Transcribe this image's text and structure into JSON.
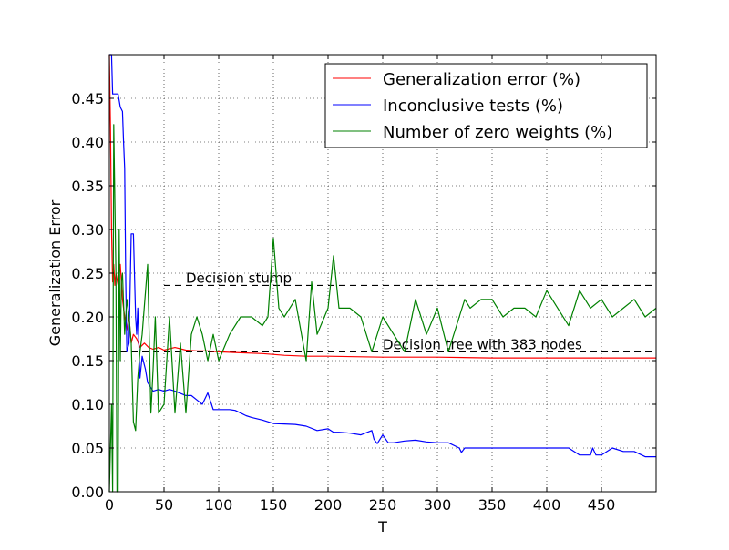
{
  "chart_data": {
    "type": "line",
    "xlabel": "T",
    "ylabel": "Generalization Error",
    "xlim": [
      0,
      500
    ],
    "ylim": [
      0,
      0.5
    ],
    "xticks": [
      0,
      50,
      100,
      150,
      200,
      250,
      300,
      350,
      400,
      450
    ],
    "yticks": [
      0.0,
      0.05,
      0.1,
      0.15,
      0.2,
      0.25,
      0.3,
      0.35,
      0.4,
      0.45
    ],
    "xtick_labels": [
      "0",
      "50",
      "100",
      "150",
      "200",
      "250",
      "300",
      "350",
      "400",
      "450"
    ],
    "ytick_labels": [
      "0.00",
      "0.05",
      "0.10",
      "0.15",
      "0.20",
      "0.25",
      "0.30",
      "0.35",
      "0.40",
      "0.45"
    ],
    "grid": true,
    "legend_position": "top-right",
    "colors": {
      "generalization": "#ff0000",
      "inconclusive": "#0000ff",
      "zero_weights": "#008000",
      "reference": "#000000"
    },
    "reference_lines": [
      {
        "label": "Decision stump",
        "y": 0.236,
        "x_start": 50,
        "x_end": 500,
        "label_x": 70
      },
      {
        "label": "Decision tree with 383 nodes",
        "y": 0.16,
        "x_start": 0,
        "x_end": 500,
        "label_x": 250
      }
    ],
    "series": [
      {
        "name": "Generalization error (%)",
        "color": "#ff0000",
        "x": [
          0,
          1,
          2,
          3,
          4,
          5,
          6,
          8,
          10,
          12,
          14,
          16,
          18,
          20,
          22,
          25,
          28,
          32,
          36,
          40,
          45,
          50,
          60,
          70,
          80,
          90,
          100,
          120,
          140,
          160,
          180,
          200,
          250,
          300,
          350,
          400,
          450,
          500
        ],
        "y": [
          0.5,
          0.42,
          0.3,
          0.24,
          0.26,
          0.236,
          0.25,
          0.236,
          0.26,
          0.22,
          0.2,
          0.185,
          0.2,
          0.17,
          0.18,
          0.175,
          0.165,
          0.17,
          0.165,
          0.163,
          0.165,
          0.162,
          0.165,
          0.162,
          0.161,
          0.161,
          0.16,
          0.159,
          0.158,
          0.156,
          0.155,
          0.155,
          0.154,
          0.154,
          0.153,
          0.153,
          0.153,
          0.153
        ]
      },
      {
        "name": "Inconclusive tests (%)",
        "color": "#0000ff",
        "x": [
          0,
          2,
          3,
          4,
          5,
          8,
          10,
          12,
          13,
          14,
          15,
          16,
          18,
          20,
          22,
          24,
          25,
          26,
          28,
          30,
          33,
          35,
          40,
          45,
          50,
          55,
          60,
          70,
          75,
          80,
          85,
          90,
          95,
          100,
          110,
          115,
          120,
          125,
          130,
          140,
          150,
          170,
          180,
          190,
          200,
          205,
          210,
          220,
          230,
          240,
          242,
          245,
          250,
          255,
          260,
          270,
          280,
          290,
          300,
          310,
          320,
          322,
          325,
          330,
          340,
          350,
          360,
          380,
          400,
          420,
          430,
          440,
          442,
          445,
          450,
          460,
          470,
          480,
          490,
          500
        ],
        "y": [
          0.5,
          0.5,
          0.455,
          0.455,
          0.455,
          0.455,
          0.44,
          0.435,
          0.4,
          0.37,
          0.24,
          0.16,
          0.17,
          0.295,
          0.295,
          0.2,
          0.18,
          0.21,
          0.13,
          0.155,
          0.14,
          0.125,
          0.115,
          0.117,
          0.115,
          0.117,
          0.115,
          0.11,
          0.11,
          0.105,
          0.1,
          0.113,
          0.094,
          0.094,
          0.094,
          0.093,
          0.09,
          0.087,
          0.085,
          0.082,
          0.078,
          0.077,
          0.075,
          0.07,
          0.072,
          0.068,
          0.068,
          0.067,
          0.065,
          0.07,
          0.06,
          0.055,
          0.065,
          0.056,
          0.056,
          0.058,
          0.059,
          0.057,
          0.056,
          0.056,
          0.05,
          0.045,
          0.05,
          0.05,
          0.05,
          0.05,
          0.05,
          0.05,
          0.05,
          0.05,
          0.042,
          0.042,
          0.05,
          0.042,
          0.042,
          0.05,
          0.046,
          0.046,
          0.04,
          0.04
        ]
      },
      {
        "name": "Number of zero weights (%)",
        "color": "#008000",
        "x": [
          0,
          2,
          3,
          4,
          6,
          7,
          8,
          9,
          10,
          11,
          12,
          14,
          16,
          18,
          20,
          22,
          24,
          25,
          26,
          28,
          30,
          35,
          38,
          40,
          42,
          45,
          50,
          55,
          60,
          65,
          70,
          75,
          80,
          85,
          90,
          95,
          100,
          110,
          120,
          130,
          140,
          145,
          150,
          155,
          160,
          170,
          180,
          185,
          190,
          200,
          205,
          210,
          220,
          230,
          240,
          250,
          260,
          270,
          280,
          290,
          300,
          310,
          320,
          325,
          330,
          340,
          350,
          360,
          370,
          380,
          390,
          400,
          410,
          420,
          430,
          440,
          450,
          460,
          470,
          480,
          490,
          500
        ],
        "y": [
          0.0,
          0.1,
          0.0,
          0.42,
          0.25,
          0.0,
          0.0,
          0.3,
          0.15,
          0.24,
          0.25,
          0.18,
          0.22,
          0.2,
          0.17,
          0.08,
          0.07,
          0.1,
          0.13,
          0.16,
          0.18,
          0.26,
          0.09,
          0.14,
          0.2,
          0.09,
          0.1,
          0.2,
          0.09,
          0.17,
          0.09,
          0.18,
          0.2,
          0.18,
          0.15,
          0.18,
          0.15,
          0.18,
          0.2,
          0.2,
          0.19,
          0.2,
          0.29,
          0.21,
          0.2,
          0.22,
          0.15,
          0.24,
          0.18,
          0.21,
          0.27,
          0.21,
          0.21,
          0.2,
          0.16,
          0.2,
          0.18,
          0.16,
          0.22,
          0.18,
          0.21,
          0.16,
          0.2,
          0.22,
          0.21,
          0.22,
          0.22,
          0.2,
          0.21,
          0.21,
          0.2,
          0.23,
          0.21,
          0.19,
          0.23,
          0.21,
          0.22,
          0.2,
          0.21,
          0.22,
          0.2,
          0.21
        ]
      }
    ]
  }
}
